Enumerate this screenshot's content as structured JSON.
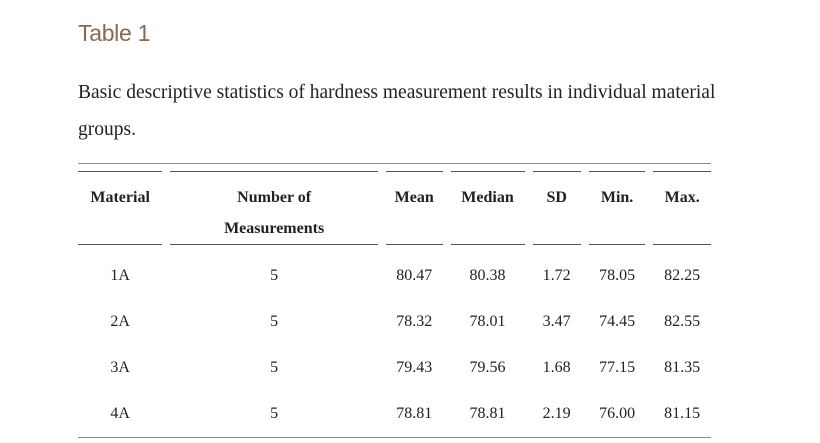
{
  "title": "Table 1",
  "caption": "Basic descriptive statistics of hardness measurement results in individual material groups.",
  "table": {
    "headers": {
      "material": "Material",
      "number_line1": "Number of",
      "number_line2": "Measurements",
      "mean": "Mean",
      "median": "Median",
      "sd": "SD",
      "min": "Min.",
      "max": "Max."
    },
    "rows": [
      {
        "material": "1A",
        "n": "5",
        "mean": "80.47",
        "median": "80.38",
        "sd": "1.72",
        "min": "78.05",
        "max": "82.25"
      },
      {
        "material": "2A",
        "n": "5",
        "mean": "78.32",
        "median": "78.01",
        "sd": "3.47",
        "min": "74.45",
        "max": "82.55"
      },
      {
        "material": "3A",
        "n": "5",
        "mean": "79.43",
        "median": "79.56",
        "sd": "1.68",
        "min": "77.15",
        "max": "81.35"
      },
      {
        "material": "4A",
        "n": "5",
        "mean": "78.81",
        "median": "78.81",
        "sd": "2.19",
        "min": "76.00",
        "max": "81.15"
      }
    ]
  },
  "colors": {
    "title": "#8a6a4a",
    "text": "#222222",
    "rule": "#8a8a8a"
  }
}
